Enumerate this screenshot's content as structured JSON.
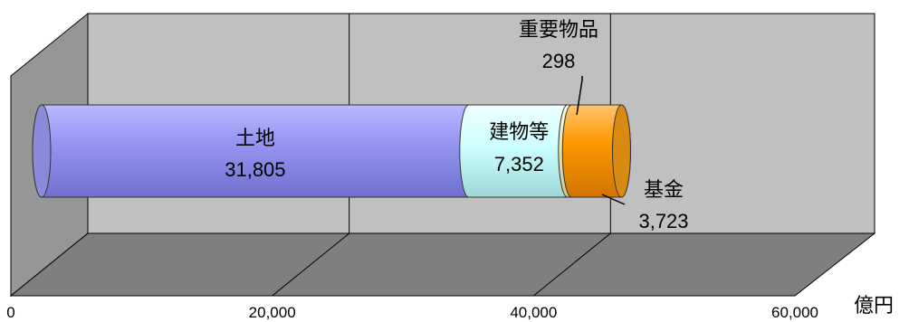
{
  "chart_data": {
    "type": "bar",
    "orientation": "horizontal",
    "stacked": true,
    "style": "3d-cylinder",
    "unit": "億円",
    "xlim": [
      0,
      60000
    ],
    "ticks": [
      "0",
      "20,000",
      "40,000",
      "60,000"
    ],
    "grid": true,
    "legend": "none",
    "series": [
      {
        "name": "土地",
        "value": 31805,
        "value_label": "31,805",
        "color": "#8f8fe6"
      },
      {
        "name": "建物等",
        "value": 7352,
        "value_label": "7,352",
        "color": "#ccffff"
      },
      {
        "name": "重要物品",
        "value": 298,
        "value_label": "298",
        "color": "#e6e6b0"
      },
      {
        "name": "基金",
        "value": 3723,
        "value_label": "3,723",
        "color": "#ff9900"
      }
    ]
  }
}
